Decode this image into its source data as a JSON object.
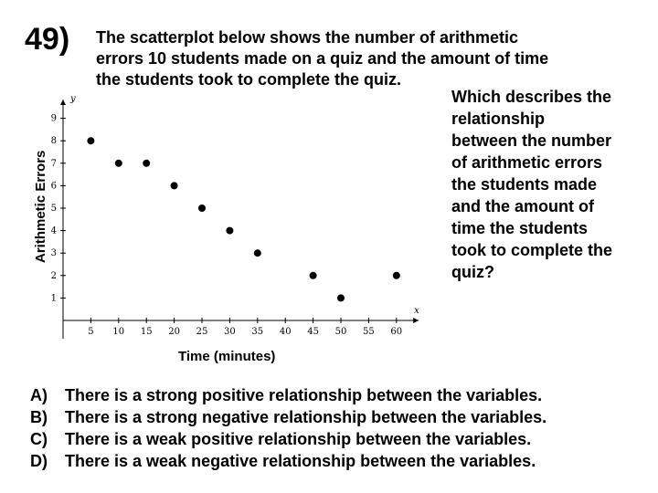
{
  "question": {
    "number": "49)",
    "intro_lines": [
      "The scatterplot below shows the number of arithmetic",
      "errors 10 students made on a quiz and the amount of time",
      "the students took to complete the quiz."
    ],
    "prompt_lines": [
      "Which describes the",
      "relationship",
      "between the number",
      "of arithmetic errors",
      "the students made",
      "and the amount of",
      "time the students",
      "took to complete the",
      "quiz?"
    ],
    "choices": [
      {
        "letter": "A)",
        "text": "There is a strong positive relationship between the variables."
      },
      {
        "letter": "B)",
        "text": "There is a strong negative relationship between the variables."
      },
      {
        "letter": "C)",
        "text": "There is a weak positive relationship between the variables."
      },
      {
        "letter": "D)",
        "text": "There is a weak negative relationship between the variables."
      }
    ]
  },
  "chart_data": {
    "type": "scatter",
    "xlabel": "Time (minutes)",
    "ylabel": "Arithmetic Errors",
    "x_axis_letter": "x",
    "y_axis_letter": "y",
    "xlim": [
      0,
      64
    ],
    "ylim": [
      0,
      10
    ],
    "x_ticks": [
      5,
      10,
      15,
      20,
      25,
      30,
      35,
      40,
      45,
      50,
      55,
      60
    ],
    "y_ticks": [
      1,
      2,
      3,
      4,
      5,
      6,
      7,
      8,
      9
    ],
    "grid": false,
    "points": [
      {
        "x": 5,
        "y": 8
      },
      {
        "x": 10,
        "y": 7
      },
      {
        "x": 15,
        "y": 7
      },
      {
        "x": 20,
        "y": 6
      },
      {
        "x": 25,
        "y": 5
      },
      {
        "x": 30,
        "y": 4
      },
      {
        "x": 35,
        "y": 3
      },
      {
        "x": 45,
        "y": 2
      },
      {
        "x": 50,
        "y": 1
      },
      {
        "x": 60,
        "y": 2
      }
    ]
  }
}
